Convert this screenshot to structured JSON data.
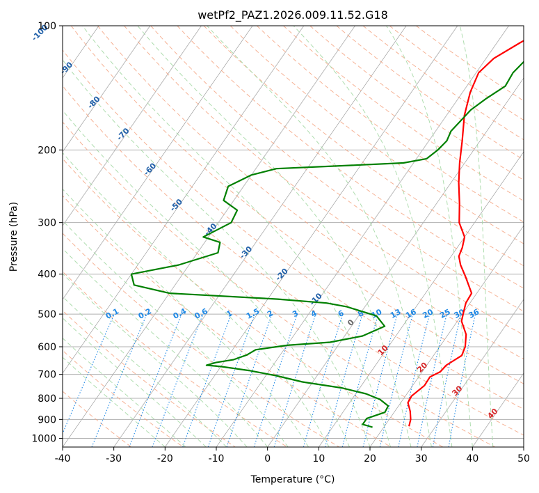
{
  "chart_data": {
    "type": "line",
    "subtype": "skew-T log-P diagram",
    "title": "wetPf2_PAZ1.2026.009.11.52.G18",
    "xlabel": "Temperature (°C)",
    "ylabel": "Pressure (hPa)",
    "xlim": [
      -40,
      50
    ],
    "ylim": [
      1050,
      100
    ],
    "y_scale": "log",
    "grid": true,
    "x_ticks": [
      -40,
      -30,
      -20,
      -10,
      0,
      10,
      20,
      30,
      40,
      50
    ],
    "y_ticks": [
      100,
      200,
      300,
      400,
      500,
      600,
      700,
      800,
      900,
      1000
    ],
    "series": [
      {
        "color": "#ff0000",
        "points": [
          [
            24.8,
            935
          ],
          [
            24.2,
            900
          ],
          [
            23.0,
            860
          ],
          [
            21.4,
            820
          ],
          [
            21.2,
            790
          ],
          [
            22.3,
            745
          ],
          [
            22.2,
            710
          ],
          [
            23.5,
            690
          ],
          [
            23.8,
            665
          ],
          [
            25.5,
            630
          ],
          [
            25.0,
            600
          ],
          [
            23.5,
            560
          ],
          [
            20.8,
            520
          ],
          [
            20.0,
            495
          ],
          [
            19.2,
            470
          ],
          [
            19.0,
            445
          ],
          [
            15.5,
            405
          ],
          [
            13.0,
            380
          ],
          [
            11.5,
            362
          ],
          [
            11.0,
            345
          ],
          [
            10.0,
            325
          ],
          [
            7.0,
            300
          ],
          [
            4.5,
            270
          ],
          [
            1.5,
            240
          ],
          [
            -1.0,
            215
          ],
          [
            -3.5,
            190
          ],
          [
            -6.5,
            165
          ],
          [
            -8.5,
            145
          ],
          [
            -9.5,
            130
          ],
          [
            -8.5,
            120
          ],
          [
            -5.5,
            110
          ],
          [
            -3.3,
            104
          ],
          [
            -2.0,
            100
          ]
        ]
      },
      {
        "color": "#008000",
        "points": [
          [
            17.8,
            940
          ],
          [
            15.5,
            925
          ],
          [
            15.5,
            895
          ],
          [
            18.2,
            865
          ],
          [
            18.0,
            835
          ],
          [
            15.5,
            805
          ],
          [
            12.0,
            780
          ],
          [
            6.5,
            755
          ],
          [
            -2.0,
            730
          ],
          [
            -8.0,
            705
          ],
          [
            -14.0,
            685
          ],
          [
            -20.0,
            670
          ],
          [
            -23.0,
            665
          ],
          [
            -21.5,
            655
          ],
          [
            -18.5,
            645
          ],
          [
            -16.5,
            628
          ],
          [
            -15.5,
            610
          ],
          [
            -10.0,
            595
          ],
          [
            -2.0,
            585
          ],
          [
            3.5,
            565
          ],
          [
            6.5,
            535
          ],
          [
            3.5,
            505
          ],
          [
            -3.5,
            480
          ],
          [
            -8.0,
            470
          ],
          [
            -18.0,
            460
          ],
          [
            -40.0,
            445
          ],
          [
            -48.0,
            425
          ],
          [
            -50.0,
            400
          ],
          [
            -42.0,
            380
          ],
          [
            -36.0,
            355
          ],
          [
            -37.0,
            335
          ],
          [
            -41.0,
            325
          ],
          [
            -37.5,
            300
          ],
          [
            -38.0,
            280
          ],
          [
            -42.0,
            265
          ],
          [
            -43.0,
            245
          ],
          [
            -40.0,
            230
          ],
          [
            -36.0,
            222
          ],
          [
            -22.0,
            218
          ],
          [
            -12.0,
            215
          ],
          [
            -8.0,
            210
          ],
          [
            -7.0,
            200
          ],
          [
            -6.5,
            190
          ],
          [
            -7.0,
            180
          ],
          [
            -6.5,
            170
          ],
          [
            -6.0,
            160
          ],
          [
            -4.5,
            150
          ],
          [
            -2.5,
            140
          ],
          [
            -2.8,
            130
          ],
          [
            -2.0,
            120
          ],
          [
            -1.5,
            110
          ],
          [
            1.5,
            103
          ],
          [
            2.5,
            100
          ]
        ]
      }
    ],
    "dry_adiabat_labels": [
      "-100",
      "-90",
      "-80",
      "-70",
      "-60",
      "-50",
      "-40",
      "-30",
      "-20",
      "-10",
      "0",
      "10",
      "20",
      "30",
      "40"
    ],
    "mixing_ratio_labels": [
      "0.1",
      "0.2",
      "0.4",
      "0.6",
      "1",
      "1.5",
      "2",
      "3",
      "4",
      "6",
      "8",
      "10",
      "13",
      "16",
      "20",
      "25",
      "30",
      "36"
    ],
    "mixing_ratio_values": [
      0.1,
      0.2,
      0.4,
      0.6,
      1,
      1.5,
      2,
      3,
      4,
      6,
      8,
      10,
      13,
      16,
      20,
      25,
      30,
      36
    ],
    "colors": {
      "temperature": "#ff0000",
      "dewpoint": "#008000",
      "isotherm": "#aaaaaa",
      "dry_adiabat": "#f4a582",
      "moist_adiabat": "#a6d9a6",
      "mixing_ratio": "#1e88e5",
      "axis": "#000000"
    }
  }
}
